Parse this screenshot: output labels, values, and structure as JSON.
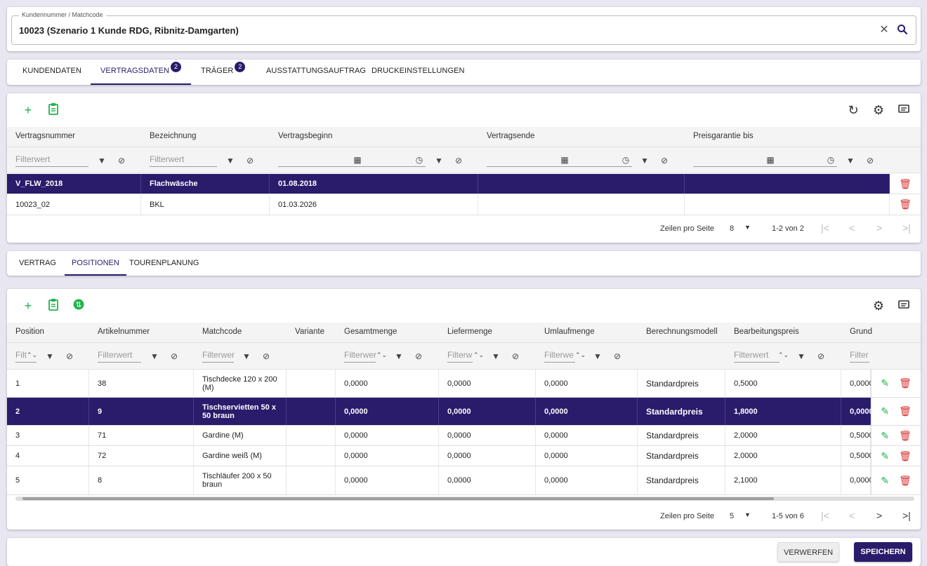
{
  "search": {
    "label": "Kundennummer / Matchcode",
    "value": "10023 (Szenario 1 Kunde RDG, Ribnitz-Damgarten)",
    "clear_icon": "close-icon",
    "search_icon": "search-icon"
  },
  "main_tabs": [
    {
      "label": "KUNDENDATEN",
      "badge": ""
    },
    {
      "label": "VERTRAGSDATEN",
      "badge": "2",
      "active": true
    },
    {
      "label": "TRÄGER",
      "badge": "2"
    },
    {
      "label": "AUSSTATTUNGSAUFTRAG",
      "badge": ""
    },
    {
      "label": "DRUCKEINSTELLUNGEN",
      "badge": ""
    }
  ],
  "contracts": {
    "columns": [
      "Vertragsnummer",
      "Bezeichnung",
      "Vertragsbeginn",
      "Vertragsende",
      "Preisgarantie bis"
    ],
    "filter_placeholder": "Filterwert",
    "rows": [
      {
        "nr": "V_FLW_2018",
        "bez": "Flachwäsche",
        "beginn": "01.08.2018",
        "ende": "",
        "preis": "",
        "selected": true
      },
      {
        "nr": "10023_02",
        "bez": "BKL",
        "beginn": "01.03.2026",
        "ende": "",
        "preis": "",
        "selected": false
      }
    ],
    "pager": {
      "rows_label": "Zeilen pro Seite",
      "rows_value": "8",
      "range": "1-2 von 2"
    }
  },
  "sub_tabs": [
    {
      "label": "VERTRAG"
    },
    {
      "label": "POSITIONEN",
      "active": true
    },
    {
      "label": "TOURENPLANUNG"
    }
  ],
  "positions": {
    "columns": [
      "Position",
      "Artikelnummer",
      "Matchcode",
      "Variante",
      "Gesamtmenge",
      "Liefermenge",
      "Umlaufmenge",
      "Berechnungsmodell",
      "Bearbeitungspreis",
      "Grund"
    ],
    "filters": {
      "position": "Filt",
      "artikel": "Filterwert",
      "matchcode": "Filterwer",
      "gesamt": "Filterwer",
      "liefer": "Filterw",
      "umlauf": "Filterwe",
      "bearb": "Filterwert",
      "grund": "Filter"
    },
    "rows": [
      {
        "pos": "1",
        "art": "38",
        "match": "Tischdecke 120 x 200 (M)",
        "var": "",
        "ges": "0,0000",
        "lief": "0,0000",
        "uml": "0,0000",
        "modell": "Standardpreis",
        "bearb": "0,5000",
        "grund": "0,0000",
        "selected": false
      },
      {
        "pos": "2",
        "art": "9",
        "match": "Tischservietten 50 x 50 braun",
        "var": "",
        "ges": "0,0000",
        "lief": "0,0000",
        "uml": "0,0000",
        "modell": "Standardpreis",
        "bearb": "1,8000",
        "grund": "0,0000",
        "selected": true
      },
      {
        "pos": "3",
        "art": "71",
        "match": "Gardine (M)",
        "var": "",
        "ges": "0,0000",
        "lief": "0,0000",
        "uml": "0,0000",
        "modell": "Standardpreis",
        "bearb": "2,0000",
        "grund": "0,5000",
        "selected": false
      },
      {
        "pos": "4",
        "art": "72",
        "match": "Gardine weiß (M)",
        "var": "",
        "ges": "0,0000",
        "lief": "0,0000",
        "uml": "0,0000",
        "modell": "Standardpreis",
        "bearb": "2,0000",
        "grund": "0,5000",
        "selected": false
      },
      {
        "pos": "5",
        "art": "8",
        "match": "Tischläufer 200 x 50 braun",
        "var": "",
        "ges": "0,0000",
        "lief": "0,0000",
        "uml": "0,0000",
        "modell": "Standardpreis",
        "bearb": "2,1000",
        "grund": "0,0000",
        "selected": false
      }
    ],
    "pager": {
      "rows_label": "Zeilen pro Seite",
      "rows_value": "5",
      "range": "1-5 von 6"
    }
  },
  "footer": {
    "discard_label": "VERWERFEN",
    "save_label": "SPEICHERN"
  },
  "colors": {
    "primary": "#2a1b6b",
    "accent_green": "#22b24c",
    "danger": "#d93030"
  }
}
